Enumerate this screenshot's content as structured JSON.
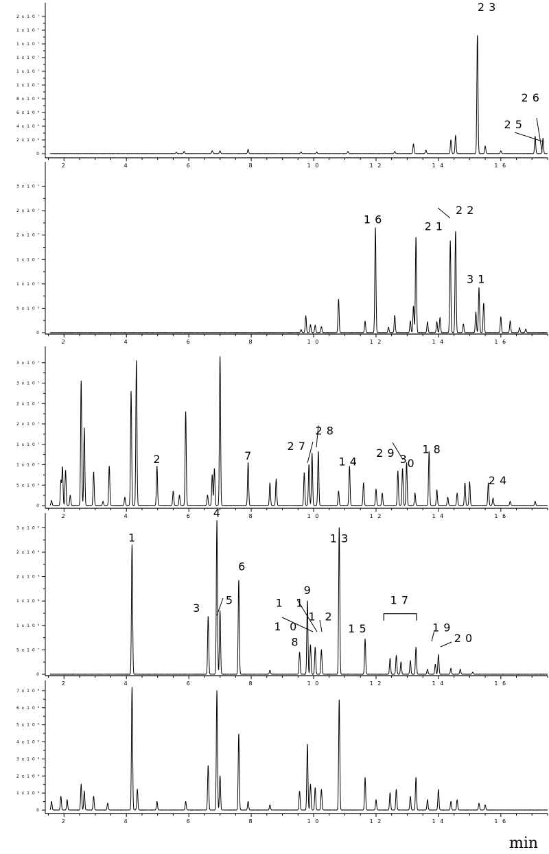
{
  "chart_data": {
    "type": "line",
    "chart_kind": "stacked chromatograms",
    "x_unit_label": "min",
    "x_range": [
      1.4,
      17.5
    ],
    "x_ticks": [
      2,
      4,
      6,
      8,
      10,
      12,
      14,
      16
    ],
    "x_tick_labels": [
      "2",
      "4",
      "6",
      "8",
      "1 0",
      "1 2",
      "1 4",
      "1 6"
    ],
    "grid": false,
    "legend": "none",
    "line_color": "#000000",
    "panels": [
      {
        "id": "panel-1",
        "ylim": [
          0,
          22000000.0
        ],
        "y_ticks": [
          0,
          2000000.0,
          4000000.0,
          6000000.0,
          8000000.0,
          10000000.0,
          12000000.0,
          14000000.0,
          16000000.0,
          18000000.0,
          20000000.0
        ],
        "y_tick_labels": [
          "0",
          "2 x 1 0 ⁶",
          "4 x 1 0 ⁶",
          "6 x 1 0 ⁶",
          "8 x 1 0 ⁶",
          "1 x 1 0 ⁷",
          "1 x 1 0 ⁷",
          "1 x 1 0 ⁷",
          "1 x 1 0 ⁷",
          "1 x 1 0 ⁷",
          "2 x 1 0 ⁷"
        ],
        "peaks": [
          {
            "x": 5.6,
            "y": 200000.0
          },
          {
            "x": 5.85,
            "y": 300000.0
          },
          {
            "x": 6.75,
            "y": 400000.0
          },
          {
            "x": 7.0,
            "y": 400000.0
          },
          {
            "x": 7.9,
            "y": 600000.0
          },
          {
            "x": 9.6,
            "y": 200000.0
          },
          {
            "x": 10.1,
            "y": 200000.0
          },
          {
            "x": 11.1,
            "y": 300000.0
          },
          {
            "x": 12.6,
            "y": 300000.0
          },
          {
            "x": 13.2,
            "y": 1400000.0
          },
          {
            "x": 13.6,
            "y": 500000.0
          },
          {
            "x": 14.4,
            "y": 2000000.0
          },
          {
            "x": 14.55,
            "y": 2600000.0
          },
          {
            "x": 15.25,
            "y": 17200000.0
          },
          {
            "x": 15.5,
            "y": 1100000.0
          },
          {
            "x": 16.0,
            "y": 400000.0
          },
          {
            "x": 17.1,
            "y": 2500000.0
          },
          {
            "x": 17.35,
            "y": 2200000.0
          }
        ],
        "labels": [
          {
            "text": "2 3",
            "x": 15.55,
            "y": 20800000.0
          },
          {
            "text": "2 6",
            "x": 16.95,
            "y": 7600000.0
          },
          {
            "text": "2 5",
            "x": 16.4,
            "y": 3700000.0
          }
        ]
      },
      {
        "id": "panel-2",
        "ylim": [
          0,
          35000000.0
        ],
        "y_ticks": [
          0,
          5000000.0,
          10000000.0,
          15000000.0,
          20000000.0,
          25000000.0,
          30000000.0
        ],
        "y_tick_labels": [
          "0",
          "5 x 1 0 ⁶",
          "1 x 1 0 ⁷",
          "1 x 1 0 ⁷",
          "2 x 1 0 ⁷",
          "2 x 1 0 ⁷",
          "3 x 1 0 ⁷"
        ],
        "peaks": [
          {
            "x": 9.6,
            "y": 600000.0
          },
          {
            "x": 9.75,
            "y": 3400000.0
          },
          {
            "x": 9.9,
            "y": 1600000.0
          },
          {
            "x": 10.05,
            "y": 1500000.0
          },
          {
            "x": 10.25,
            "y": 1200000.0
          },
          {
            "x": 10.8,
            "y": 6800000.0
          },
          {
            "x": 11.65,
            "y": 2300000.0
          },
          {
            "x": 11.98,
            "y": 21500000.0
          },
          {
            "x": 12.4,
            "y": 1100000.0
          },
          {
            "x": 12.6,
            "y": 3500000.0
          },
          {
            "x": 13.1,
            "y": 2400000.0
          },
          {
            "x": 13.2,
            "y": 5400000.0
          },
          {
            "x": 13.28,
            "y": 19500000.0
          },
          {
            "x": 13.65,
            "y": 2200000.0
          },
          {
            "x": 13.95,
            "y": 2200000.0
          },
          {
            "x": 14.05,
            "y": 3100000.0
          },
          {
            "x": 14.38,
            "y": 18800000.0
          },
          {
            "x": 14.55,
            "y": 20700000.0
          },
          {
            "x": 14.8,
            "y": 1800000.0
          },
          {
            "x": 15.2,
            "y": 4200000.0
          },
          {
            "x": 15.3,
            "y": 9200000.0
          },
          {
            "x": 15.45,
            "y": 6000000.0
          },
          {
            "x": 16.0,
            "y": 3200000.0
          },
          {
            "x": 16.3,
            "y": 2400000.0
          },
          {
            "x": 16.6,
            "y": 1000000.0
          },
          {
            "x": 16.8,
            "y": 700000.0
          }
        ],
        "labels": [
          {
            "text": "1 6",
            "x": 11.9,
            "y": 22400000.0
          },
          {
            "text": "2 1",
            "x": 13.85,
            "y": 21000000.0
          },
          {
            "text": "2 2",
            "x": 14.85,
            "y": 24300000.0
          },
          {
            "text": "3 1",
            "x": 15.2,
            "y": 10200000.0
          }
        ]
      },
      {
        "id": "panel-3",
        "ylim": [
          0,
          39000000.0
        ],
        "y_ticks": [
          0,
          5000000.0,
          10000000.0,
          15000000.0,
          20000000.0,
          25000000.0,
          30000000.0,
          35000000.0
        ],
        "y_tick_labels": [
          "0",
          "5 x 1 0 ⁶",
          "1 x 1 0 ⁷",
          "1 x 1 0 ⁷",
          "2 x 1 0 ⁷",
          "2 x 1 0 ⁷",
          "3 x 1 0 ⁷",
          "3 x 1 0 ⁷"
        ],
        "peaks": [
          {
            "x": 1.6,
            "y": 1200000.0
          },
          {
            "x": 1.9,
            "y": 6000000.0
          },
          {
            "x": 1.95,
            "y": 9400000.0
          },
          {
            "x": 2.05,
            "y": 8600000.0
          },
          {
            "x": 2.2,
            "y": 2500000.0
          },
          {
            "x": 2.55,
            "y": 30500000.0
          },
          {
            "x": 2.65,
            "y": 19000000.0
          },
          {
            "x": 2.95,
            "y": 8200000.0
          },
          {
            "x": 3.25,
            "y": 1000000.0
          },
          {
            "x": 3.45,
            "y": 9600000.0
          },
          {
            "x": 3.95,
            "y": 2000000.0
          },
          {
            "x": 4.15,
            "y": 28000000.0
          },
          {
            "x": 4.32,
            "y": 35500000.0
          },
          {
            "x": 4.98,
            "y": 9600000.0
          },
          {
            "x": 5.5,
            "y": 3500000.0
          },
          {
            "x": 5.7,
            "y": 2500000.0
          },
          {
            "x": 5.9,
            "y": 23000000.0
          },
          {
            "x": 6.6,
            "y": 2500000.0
          },
          {
            "x": 6.75,
            "y": 7500000.0
          },
          {
            "x": 6.82,
            "y": 9000000.0
          },
          {
            "x": 7.0,
            "y": 36500000.0
          },
          {
            "x": 7.9,
            "y": 10500000.0
          },
          {
            "x": 8.6,
            "y": 5500000.0
          },
          {
            "x": 8.8,
            "y": 6500000.0
          },
          {
            "x": 9.7,
            "y": 8000000.0
          },
          {
            "x": 9.85,
            "y": 10000000.0
          },
          {
            "x": 9.95,
            "y": 12800000.0
          },
          {
            "x": 10.15,
            "y": 13200000.0
          },
          {
            "x": 10.8,
            "y": 3500000.0
          },
          {
            "x": 11.15,
            "y": 9600000.0
          },
          {
            "x": 11.6,
            "y": 5500000.0
          },
          {
            "x": 12.0,
            "y": 4000000.0
          },
          {
            "x": 12.2,
            "y": 3000000.0
          },
          {
            "x": 12.7,
            "y": 8400000.0
          },
          {
            "x": 12.85,
            "y": 9000000.0
          },
          {
            "x": 12.98,
            "y": 10500000.0
          },
          {
            "x": 13.25,
            "y": 3000000.0
          },
          {
            "x": 13.7,
            "y": 13200000.0
          },
          {
            "x": 13.95,
            "y": 3800000.0
          },
          {
            "x": 14.3,
            "y": 2000000.0
          },
          {
            "x": 14.6,
            "y": 3000000.0
          },
          {
            "x": 14.85,
            "y": 5500000.0
          },
          {
            "x": 15.0,
            "y": 5800000.0
          },
          {
            "x": 15.6,
            "y": 5500000.0
          },
          {
            "x": 15.75,
            "y": 1800000.0
          },
          {
            "x": 16.3,
            "y": 1000000.0
          },
          {
            "x": 17.1,
            "y": 1000000.0
          }
        ],
        "labels": [
          {
            "text": "2",
            "x": 4.98,
            "y": 10400000.0
          },
          {
            "text": "7",
            "x": 7.9,
            "y": 11300000.0
          },
          {
            "text": "2 7",
            "x": 9.45,
            "y": 13600000.0
          },
          {
            "text": "2 8",
            "x": 10.35,
            "y": 17400000.0
          },
          {
            "text": "1 4",
            "x": 11.1,
            "y": 9800000.0
          },
          {
            "text": "2 9",
            "x": 12.3,
            "y": 11900000.0
          },
          {
            "text": "3",
            "x": 12.88,
            "y": 10400000.0
          },
          {
            "text": "0",
            "x": 13.12,
            "y": 9400000.0
          },
          {
            "text": "1 8",
            "x": 13.78,
            "y": 12900000.0
          },
          {
            "text": "2 4",
            "x": 15.9,
            "y": 5200000.0
          }
        ]
      },
      {
        "id": "panel-4",
        "ylim": [
          0,
          330000000.0
        ],
        "y_ticks": [
          0,
          50000000.0,
          100000000.0,
          150000000.0,
          200000000.0,
          250000000.0,
          300000000.0
        ],
        "y_tick_labels": [
          "0",
          "5 x 1 0 ⁷",
          "1 x 1 0 ⁸",
          "1 x 1 0 ⁸",
          "2 x 1 0 ⁸",
          "2 x 1 0 ⁸",
          "3 x 1 0 ⁸"
        ],
        "peaks": [
          {
            "x": 4.18,
            "y": 265000000.0
          },
          {
            "x": 6.62,
            "y": 118000000.0
          },
          {
            "x": 6.9,
            "y": 315000000.0
          },
          {
            "x": 7.0,
            "y": 130000000.0
          },
          {
            "x": 7.6,
            "y": 192000000.0
          },
          {
            "x": 8.6,
            "y": 8000000.0
          },
          {
            "x": 9.55,
            "y": 45000000.0
          },
          {
            "x": 9.8,
            "y": 150000000.0
          },
          {
            "x": 9.9,
            "y": 60000000.0
          },
          {
            "x": 10.05,
            "y": 55000000.0
          },
          {
            "x": 10.25,
            "y": 50000000.0
          },
          {
            "x": 10.82,
            "y": 300000000.0
          },
          {
            "x": 11.65,
            "y": 72000000.0
          },
          {
            "x": 12.45,
            "y": 32000000.0
          },
          {
            "x": 12.65,
            "y": 38000000.0
          },
          {
            "x": 12.8,
            "y": 25000000.0
          },
          {
            "x": 13.1,
            "y": 28000000.0
          },
          {
            "x": 13.28,
            "y": 55000000.0
          },
          {
            "x": 13.65,
            "y": 10000000.0
          },
          {
            "x": 13.9,
            "y": 20000000.0
          },
          {
            "x": 14.0,
            "y": 40000000.0
          },
          {
            "x": 14.4,
            "y": 12000000.0
          },
          {
            "x": 14.7,
            "y": 10000000.0
          },
          {
            "x": 15.1,
            "y": 4000000.0
          }
        ],
        "labels": [
          {
            "text": "1",
            "x": 4.18,
            "y": 272000000.0
          },
          {
            "text": "3",
            "x": 6.25,
            "y": 128000000.0
          },
          {
            "text": "4",
            "x": 6.9,
            "y": 322000000.0
          },
          {
            "text": "5",
            "x": 7.3,
            "y": 144000000.0
          },
          {
            "text": "6",
            "x": 7.7,
            "y": 213000000.0
          },
          {
            "text": "1 3",
            "x": 10.82,
            "y": 270000000.0
          },
          {
            "text": "9",
            "x": 9.8,
            "y": 164000000.0
          },
          {
            "text": "1",
            "x": 8.9,
            "y": 138000000.0
          },
          {
            "text": "1",
            "x": 9.55,
            "y": 138000000.0
          },
          {
            "text": "1",
            "x": 9.95,
            "y": 110000000.0
          },
          {
            "text": "2",
            "x": 10.48,
            "y": 110000000.0
          },
          {
            "text": "1",
            "x": 8.85,
            "y": 90000000.0
          },
          {
            "text": "0",
            "x": 9.35,
            "y": 90000000.0
          },
          {
            "text": "8",
            "x": 9.4,
            "y": 58000000.0
          },
          {
            "text": "1 5",
            "x": 11.4,
            "y": 86000000.0
          },
          {
            "text": "1 7",
            "x": 12.75,
            "y": 144000000.0
          },
          {
            "text": "1 9",
            "x": 14.1,
            "y": 88000000.0
          },
          {
            "text": "2 0",
            "x": 14.8,
            "y": 66000000.0
          }
        ],
        "bracket": {
          "x_start": 12.25,
          "x_end": 13.3,
          "y": 124000000.0
        }
      },
      {
        "id": "panel-5",
        "ylim": [
          0,
          760000000.0
        ],
        "y_ticks": [
          0,
          100000000.0,
          200000000.0,
          300000000.0,
          400000000.0,
          500000000.0,
          600000000.0,
          700000000.0
        ],
        "y_tick_labels": [
          "0",
          "1 x 1 0 ⁸",
          "2 x 1 0 ⁸",
          "3 x 1 0 ⁸",
          "4 x 1 0 ⁸",
          "5 x 1 0 ⁸",
          "6 x 1 0 ⁸",
          "7 x 1 0 ⁸"
        ],
        "peaks": [
          {
            "x": 1.6,
            "y": 50000000.0
          },
          {
            "x": 1.9,
            "y": 80000000.0
          },
          {
            "x": 2.1,
            "y": 60000000.0
          },
          {
            "x": 2.55,
            "y": 150000000.0
          },
          {
            "x": 2.65,
            "y": 110000000.0
          },
          {
            "x": 2.95,
            "y": 80000000.0
          },
          {
            "x": 3.4,
            "y": 40000000.0
          },
          {
            "x": 4.18,
            "y": 720000000.0
          },
          {
            "x": 4.35,
            "y": 120000000.0
          },
          {
            "x": 4.98,
            "y": 50000000.0
          },
          {
            "x": 5.9,
            "y": 50000000.0
          },
          {
            "x": 6.62,
            "y": 260000000.0
          },
          {
            "x": 6.9,
            "y": 700000000.0
          },
          {
            "x": 7.0,
            "y": 200000000.0
          },
          {
            "x": 7.6,
            "y": 445000000.0
          },
          {
            "x": 7.9,
            "y": 50000000.0
          },
          {
            "x": 8.6,
            "y": 30000000.0
          },
          {
            "x": 9.55,
            "y": 110000000.0
          },
          {
            "x": 9.8,
            "y": 385000000.0
          },
          {
            "x": 9.9,
            "y": 150000000.0
          },
          {
            "x": 10.05,
            "y": 130000000.0
          },
          {
            "x": 10.25,
            "y": 120000000.0
          },
          {
            "x": 10.82,
            "y": 645000000.0
          },
          {
            "x": 11.65,
            "y": 190000000.0
          },
          {
            "x": 12.0,
            "y": 60000000.0
          },
          {
            "x": 12.45,
            "y": 100000000.0
          },
          {
            "x": 12.65,
            "y": 120000000.0
          },
          {
            "x": 13.1,
            "y": 80000000.0
          },
          {
            "x": 13.28,
            "y": 190000000.0
          },
          {
            "x": 13.65,
            "y": 60000000.0
          },
          {
            "x": 14.0,
            "y": 120000000.0
          },
          {
            "x": 14.4,
            "y": 50000000.0
          },
          {
            "x": 14.6,
            "y": 60000000.0
          },
          {
            "x": 15.3,
            "y": 40000000.0
          },
          {
            "x": 15.5,
            "y": 30000000.0
          }
        ],
        "labels": []
      }
    ]
  }
}
